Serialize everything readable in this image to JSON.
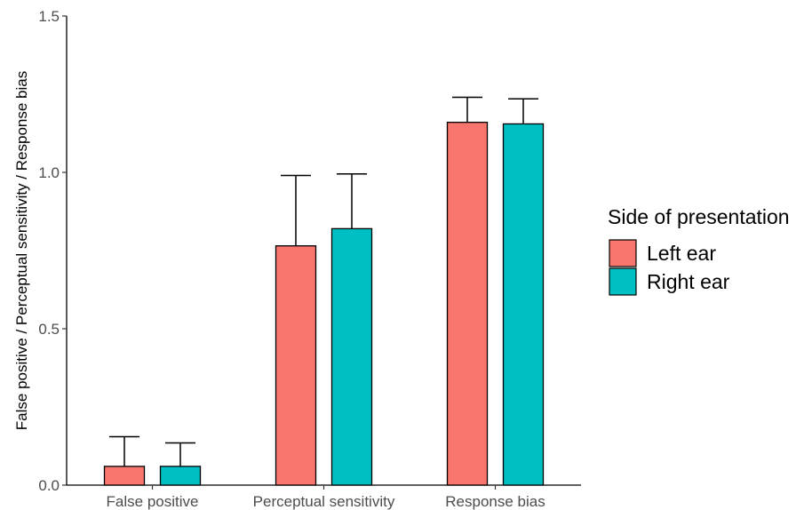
{
  "chart_data": {
    "type": "bar",
    "categories": [
      "False positive",
      "Perceptual sensitivity",
      "Response bias"
    ],
    "series": [
      {
        "name": "Left ear",
        "color": "#F8766D",
        "values": [
          0.06,
          0.765,
          1.16
        ],
        "error_upper": [
          0.155,
          0.99,
          1.24
        ]
      },
      {
        "name": "Right ear",
        "color": "#00BFC4",
        "values": [
          0.06,
          0.82,
          1.155
        ],
        "error_upper": [
          0.135,
          0.995,
          1.235
        ]
      }
    ],
    "ylabel": "False positive / Perceptual sensitivity / Response bias",
    "xlabel": "",
    "ylim": [
      0,
      1.5
    ],
    "yticks": [
      "0.0",
      "0.5",
      "1.0",
      "1.5"
    ],
    "grid": false,
    "legend": {
      "title": "Side of presentation",
      "position": "right"
    }
  }
}
